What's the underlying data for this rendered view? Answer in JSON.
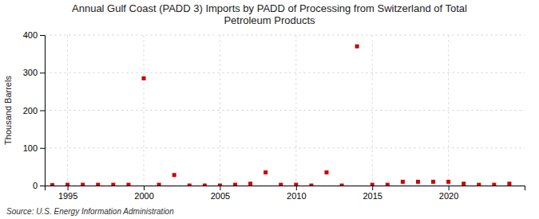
{
  "chart_data": {
    "type": "scatter",
    "title": "Annual Gulf Coast (PADD 3) Imports by PADD of Processing from Switzerland of Total\nPetroleum Products",
    "ylabel": "Thousand Barrels",
    "annotations": [
      "Source: U.S. Energy Information Administration"
    ],
    "x": [
      1994,
      1995,
      1996,
      1997,
      1998,
      1999,
      2000,
      2001,
      2002,
      2003,
      2004,
      2005,
      2006,
      2007,
      2008,
      2009,
      2010,
      2011,
      2012,
      2013,
      2014,
      2015,
      2016,
      2017,
      2018,
      2019,
      2020,
      2021,
      2022,
      2023,
      2024
    ],
    "values": [
      1,
      2,
      2,
      2,
      2,
      2,
      285,
      2,
      28,
      0,
      0,
      0,
      2,
      5,
      35,
      2,
      2,
      0,
      35,
      0,
      370,
      2,
      2,
      10,
      10,
      10,
      10,
      5,
      2,
      2,
      5
    ],
    "color": "#cc0000",
    "marker": "square",
    "xlim": [
      1993.5,
      2025
    ],
    "ylim": [
      0,
      400
    ],
    "xticks": [
      1995,
      2000,
      2005,
      2010,
      2015,
      2020
    ],
    "yticks": [
      0,
      100,
      200,
      300,
      400
    ],
    "grid": true
  }
}
